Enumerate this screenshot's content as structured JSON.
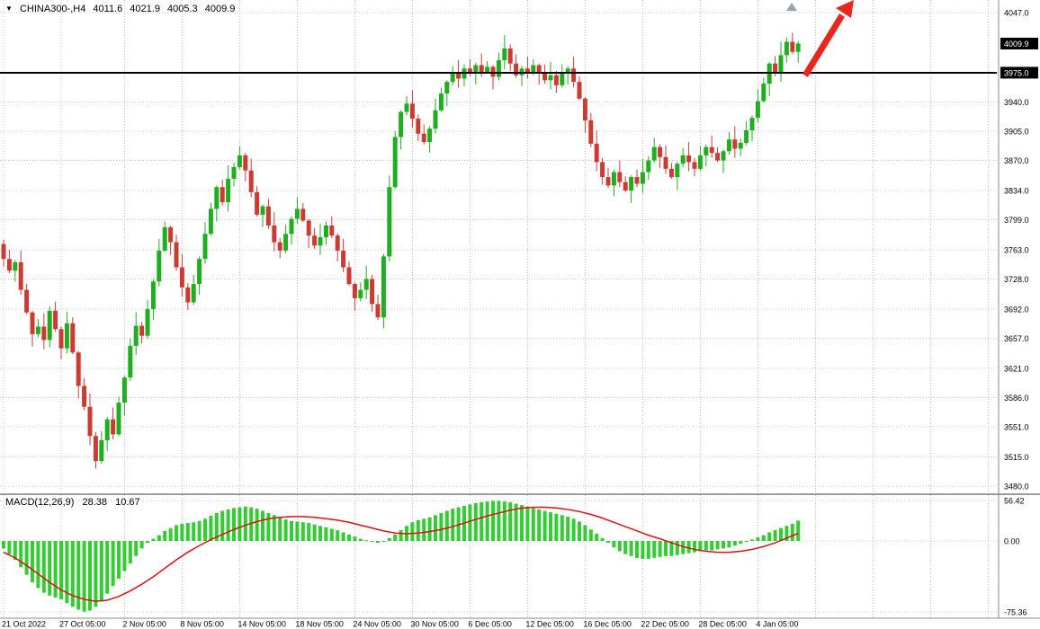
{
  "header": {
    "dropdown_icon": "▼",
    "symbol_period": "CHINA300-,H4",
    "open": "4011.6",
    "high": "4021.9",
    "low": "4005.3",
    "close": "4009.9"
  },
  "macd_label": {
    "name": "MACD(12,26,9)",
    "main_value": "28.38",
    "signal_value": "10.67"
  },
  "price_axis": {
    "labels": [
      {
        "text": "4047.0",
        "price": 4047.0,
        "highlight": false
      },
      {
        "text": "4009.9",
        "price": 4009.9,
        "highlight": true
      },
      {
        "text": "3975.0",
        "price": 3975.0,
        "highlight": true
      },
      {
        "text": "3940.0",
        "price": 3940.0,
        "highlight": false
      },
      {
        "text": "3905.0",
        "price": 3905.0,
        "highlight": false
      },
      {
        "text": "3870.0",
        "price": 3870.0,
        "highlight": false
      },
      {
        "text": "3834.0",
        "price": 3834.0,
        "highlight": false
      },
      {
        "text": "3799.0",
        "price": 3799.0,
        "highlight": false
      },
      {
        "text": "3763.0",
        "price": 3763.0,
        "highlight": false
      },
      {
        "text": "3728.0",
        "price": 3728.0,
        "highlight": false
      },
      {
        "text": "3692.0",
        "price": 3692.0,
        "highlight": false
      },
      {
        "text": "3657.0",
        "price": 3657.0,
        "highlight": false
      },
      {
        "text": "3621.0",
        "price": 3621.0,
        "highlight": false
      },
      {
        "text": "3586.0",
        "price": 3586.0,
        "highlight": false
      },
      {
        "text": "3551.0",
        "price": 3551.0,
        "highlight": false
      },
      {
        "text": "3515.0",
        "price": 3515.0,
        "highlight": false
      },
      {
        "text": "3480.0",
        "price": 3480.0,
        "highlight": false
      }
    ]
  },
  "macd_axis": {
    "labels": [
      {
        "text": "56.42",
        "value": 56.42
      },
      {
        "text": "0.00",
        "value": 0
      },
      {
        "text": "-75.36",
        "value": -75.36
      }
    ]
  },
  "time_axis": {
    "labels": [
      {
        "text": "21 Oct 2022",
        "index": 0
      },
      {
        "text": "27 Oct 05:00",
        "index": 10
      },
      {
        "text": "2 Nov 05:00",
        "index": 21
      },
      {
        "text": "8 Nov 05:00",
        "index": 31
      },
      {
        "text": "14 Nov 05:00",
        "index": 41
      },
      {
        "text": "18 Nov 05:00",
        "index": 51
      },
      {
        "text": "24 Nov 05:00",
        "index": 61
      },
      {
        "text": "30 Nov 05:00",
        "index": 71
      },
      {
        "text": "6 Dec 05:00",
        "index": 81
      },
      {
        "text": "12 Dec 05:00",
        "index": 91
      },
      {
        "text": "16 Dec 05:00",
        "index": 101
      },
      {
        "text": "22 Dec 05:00",
        "index": 111
      },
      {
        "text": "28 Dec 05:00",
        "index": 121
      },
      {
        "text": "4 Jan 05:00",
        "index": 131
      }
    ]
  },
  "colors": {
    "bull": "#1fae1f",
    "bear": "#cc3b33",
    "grid": "#c9c9c9",
    "hist": "#33cc33",
    "signal": "#dd1111",
    "arrow": "#e8251f",
    "hline": "#000000",
    "badge_bg": "#000000",
    "badge_text": "#ffffff",
    "separator": "#9c9c9c",
    "marker": "#98a2a8"
  },
  "chart_data": [
    {
      "type": "candlestick",
      "symbol": "CHINA300-",
      "timeframe": "H4",
      "ylim": [
        3480,
        4047
      ],
      "hline_price": 3975.0,
      "last_price": 4009.9,
      "first_open": 3770,
      "high_wick_pattern": [
        5,
        11,
        3,
        14,
        7,
        2,
        9,
        16
      ],
      "low_wick_pattern": [
        9,
        3,
        13,
        6,
        2,
        15,
        4,
        11
      ],
      "closes": [
        3752,
        3738,
        3748,
        3715,
        3688,
        3662,
        3671,
        3655,
        3690,
        3668,
        3645,
        3675,
        3640,
        3600,
        3575,
        3540,
        3510,
        3535,
        3560,
        3542,
        3580,
        3610,
        3648,
        3672,
        3660,
        3692,
        3725,
        3762,
        3790,
        3772,
        3742,
        3718,
        3700,
        3722,
        3752,
        3782,
        3812,
        3838,
        3820,
        3848,
        3862,
        3876,
        3858,
        3832,
        3805,
        3815,
        3792,
        3772,
        3762,
        3782,
        3800,
        3812,
        3798,
        3780,
        3768,
        3778,
        3792,
        3780,
        3762,
        3742,
        3722,
        3705,
        3715,
        3728,
        3698,
        3682,
        3755,
        3838,
        3898,
        3928,
        3938,
        3920,
        3902,
        3892,
        3908,
        3930,
        3950,
        3964,
        3974,
        3968,
        3980,
        3974,
        3984,
        3976,
        3982,
        3970,
        3990,
        4004,
        3986,
        3972,
        3980,
        3974,
        3984,
        3976,
        3966,
        3972,
        3960,
        3974,
        3980,
        3964,
        3944,
        3918,
        3890,
        3868,
        3850,
        3840,
        3856,
        3844,
        3834,
        3850,
        3842,
        3856,
        3870,
        3886,
        3874,
        3860,
        3850,
        3866,
        3876,
        3868,
        3860,
        3876,
        3886,
        3879,
        3870,
        3881,
        3895,
        3884,
        3891,
        3906,
        3921,
        3941,
        3962,
        3986,
        3975,
        3996,
        4012,
        4000,
        4009.9
      ]
    },
    {
      "type": "bar",
      "name": "MACD histogram",
      "ylim": [
        -75.36,
        56.42
      ],
      "values": [
        -8,
        -14,
        -20,
        -28,
        -36,
        -44,
        -50,
        -55,
        -58,
        -60,
        -62,
        -66,
        -70,
        -73,
        -75,
        -74,
        -70,
        -64,
        -56,
        -48,
        -40,
        -32,
        -24,
        -16,
        -8,
        -2,
        3,
        8,
        14,
        18,
        22,
        24,
        25,
        26,
        28,
        31,
        35,
        39,
        42,
        44,
        46,
        47,
        48,
        47,
        45,
        42,
        39,
        36,
        33,
        30,
        28,
        27,
        26,
        25,
        23,
        21,
        19,
        17,
        15,
        12,
        9,
        6,
        3,
        1,
        -1,
        -2,
        0,
        4,
        9,
        15,
        21,
        26,
        29,
        31,
        33,
        36,
        39,
        42,
        45,
        47,
        49,
        51,
        53,
        54,
        55,
        56,
        56,
        55,
        54,
        52,
        50,
        48,
        46,
        44,
        42,
        40,
        38,
        36,
        34,
        31,
        27,
        22,
        16,
        10,
        4,
        -2,
        -7,
        -11,
        -14,
        -16,
        -18,
        -19,
        -19,
        -18,
        -17,
        -16,
        -16,
        -15,
        -14,
        -13,
        -12,
        -11,
        -10,
        -10,
        -9,
        -8,
        -7,
        -5,
        -3,
        -1,
        2,
        5,
        8,
        12,
        15,
        18,
        21,
        24,
        28.38
      ]
    },
    {
      "type": "line",
      "name": "MACD signal",
      "index_step": 2,
      "values": [
        -12,
        -18,
        -26,
        -35,
        -44,
        -52,
        -58,
        -62,
        -64,
        -63,
        -59,
        -53,
        -46,
        -38,
        -29,
        -20,
        -12,
        -5,
        2,
        9,
        16,
        22,
        27,
        31,
        33,
        34,
        34,
        33,
        31,
        29,
        26,
        22,
        18,
        14,
        11,
        10,
        11,
        13,
        16,
        20,
        25,
        30,
        35,
        39,
        43,
        46,
        47,
        47,
        46,
        44,
        41,
        37,
        32,
        26,
        20,
        14,
        8,
        3,
        -2,
        -6,
        -9,
        -11,
        -12,
        -12,
        -11,
        -9,
        -6,
        -2,
        4,
        10.67
      ]
    }
  ]
}
